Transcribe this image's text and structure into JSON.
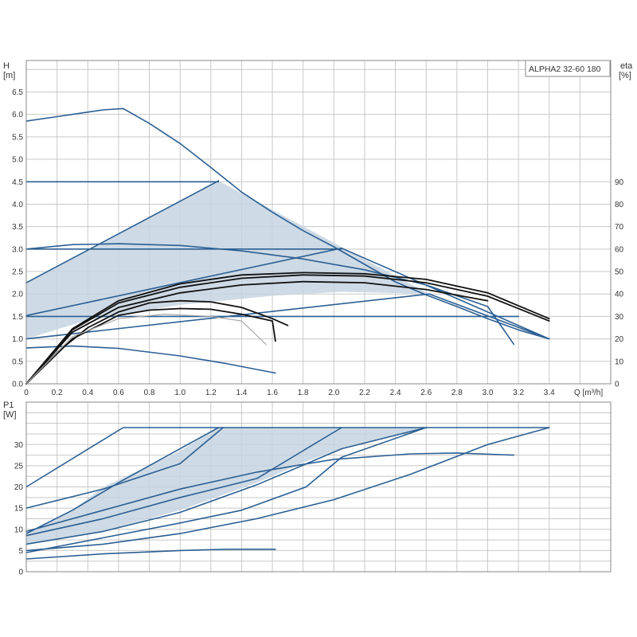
{
  "model_label": "ALPHA2 32-60 180",
  "colors": {
    "curve": "#2b5f93",
    "area": "#c5d3e0",
    "eta": "#111111",
    "eta_alt": "#aaaaaa",
    "grid": "#c8c8c8"
  },
  "chart_data": [
    {
      "type": "line",
      "name": "head",
      "ylabel_top": "H",
      "ylabel_unit": "[m]",
      "y2label_top": "eta",
      "y2label_unit": "[%]",
      "xlabel": "Q [m³/h]",
      "xlim": [
        0,
        3.8
      ],
      "ylim": [
        0,
        7.2
      ],
      "y2lim": [
        0,
        144
      ],
      "grid": true,
      "x_ticks": [
        "0",
        "0.2",
        "0.4",
        "0.6",
        "0.8",
        "1.0",
        "1.2",
        "1.4",
        "1.6",
        "1.8",
        "2.0",
        "2.2",
        "2.4",
        "2.6",
        "2.8",
        "3.0",
        "3.2",
        "3.4"
      ],
      "y_ticks": [
        "0.0",
        "0.5",
        "1.0",
        "1.5",
        "2.0",
        "2.5",
        "3.0",
        "3.5",
        "4.0",
        "4.5",
        "5.0",
        "5.5",
        "6.0",
        "6.5"
      ],
      "y2_ticks": [
        "0",
        "10",
        "20",
        "30",
        "40",
        "50",
        "60",
        "70",
        "80",
        "90"
      ],
      "shaded_region": [
        [
          0,
          1.0
        ],
        [
          0,
          2.25
        ],
        [
          1.25,
          4.52
        ],
        [
          2.62,
          2.0
        ],
        [
          2.05,
          2.05
        ],
        [
          1.6,
          1.96
        ],
        [
          1.0,
          1.76
        ],
        [
          0.4,
          1.42
        ],
        [
          0,
          1.0
        ]
      ],
      "series": [
        {
          "kind": "head",
          "points": [
            [
              0,
              5.85
            ],
            [
              0.2,
              5.95
            ],
            [
              0.4,
              6.05
            ],
            [
              0.5,
              6.1
            ],
            [
              0.63,
              6.13
            ],
            [
              0.8,
              5.8
            ],
            [
              1.0,
              5.35
            ],
            [
              1.2,
              4.82
            ],
            [
              1.4,
              4.27
            ],
            [
              1.6,
              3.82
            ],
            [
              1.8,
              3.41
            ],
            [
              2.0,
              3.05
            ],
            [
              2.2,
              2.66
            ],
            [
              2.4,
              2.27
            ],
            [
              2.6,
              1.98
            ],
            [
              2.8,
              1.72
            ],
            [
              3.0,
              1.45
            ],
            [
              3.2,
              1.2
            ],
            [
              3.4,
              1.0
            ]
          ]
        },
        {
          "kind": "head",
          "points": [
            [
              0,
              4.5
            ],
            [
              1.25,
              4.5
            ]
          ]
        },
        {
          "kind": "head",
          "points": [
            [
              0,
              3.0
            ],
            [
              2.05,
              3.0
            ]
          ]
        },
        {
          "kind": "head",
          "points": [
            [
              0,
              1.5
            ],
            [
              3.2,
              1.5
            ]
          ]
        },
        {
          "kind": "head",
          "points": [
            [
              0,
              1.0
            ],
            [
              2.62,
              2.0
            ],
            [
              3.4,
              1.0
            ]
          ]
        },
        {
          "kind": "head",
          "points": [
            [
              0,
              2.25
            ],
            [
              1.25,
              4.52
            ]
          ]
        },
        {
          "kind": "head",
          "points": [
            [
              0,
              1.52
            ],
            [
              2.05,
              3.02
            ],
            [
              3.4,
              1.0
            ]
          ]
        },
        {
          "kind": "head",
          "points": [
            [
              0,
              3.0
            ],
            [
              0.3,
              3.1
            ],
            [
              0.6,
              3.12
            ],
            [
              1.0,
              3.08
            ],
            [
              1.4,
              2.96
            ],
            [
              1.8,
              2.78
            ],
            [
              2.2,
              2.54
            ],
            [
              2.6,
              2.2
            ],
            [
              3.0,
              1.72
            ],
            [
              3.17,
              0.88
            ]
          ]
        },
        {
          "kind": "head",
          "points": [
            [
              0,
              0.8
            ],
            [
              0.3,
              0.84
            ],
            [
              0.6,
              0.79
            ],
            [
              1.0,
              0.62
            ],
            [
              1.3,
              0.45
            ],
            [
              1.62,
              0.24
            ]
          ]
        },
        {
          "kind": "eta",
          "points": [
            [
              0,
              0
            ],
            [
              0.2,
              14
            ],
            [
              0.4,
              25
            ],
            [
              0.6,
              32
            ],
            [
              0.8,
              36
            ],
            [
              1.0,
              37
            ],
            [
              1.2,
              36.5
            ],
            [
              1.4,
              34
            ],
            [
              1.6,
              29
            ],
            [
              1.7,
              26
            ]
          ]
        },
        {
          "kind": "eta",
          "points": [
            [
              0,
              0
            ],
            [
              0.3,
              20
            ],
            [
              0.6,
              30.5
            ],
            [
              0.8,
              32.8
            ],
            [
              1.0,
              33.5
            ],
            [
              1.2,
              33.2
            ],
            [
              1.4,
              31
            ],
            [
              1.6,
              28
            ],
            [
              1.62,
              19
            ]
          ]
        },
        {
          "kind": "eta",
          "points": [
            [
              0,
              0
            ],
            [
              0.3,
              23
            ],
            [
              0.6,
              34
            ],
            [
              1.0,
              40.5
            ],
            [
              1.4,
              44
            ],
            [
              1.8,
              45.5
            ],
            [
              2.2,
              45
            ],
            [
              2.6,
              42
            ],
            [
              3.0,
              37
            ]
          ]
        },
        {
          "kind": "eta",
          "points": [
            [
              0,
              0
            ],
            [
              0.3,
              24
            ],
            [
              0.6,
              36
            ],
            [
              1.0,
              43
            ],
            [
              1.4,
              47
            ],
            [
              1.8,
              48.5
            ],
            [
              2.2,
              48
            ],
            [
              2.6,
              45
            ],
            [
              3.0,
              39
            ],
            [
              3.4,
              28
            ]
          ]
        },
        {
          "kind": "eta",
          "points": [
            [
              0,
              0
            ],
            [
              0.3,
              24.5
            ],
            [
              0.6,
              37
            ],
            [
              1.0,
              44.5
            ],
            [
              1.4,
              48.5
            ],
            [
              1.8,
              49.5
            ],
            [
              2.2,
              49
            ],
            [
              2.6,
              46.5
            ],
            [
              3.0,
              40.5
            ],
            [
              3.4,
              29
            ]
          ]
        },
        {
          "kind": "eta_alt",
          "points": [
            [
              0,
              0
            ],
            [
              0.3,
              21
            ],
            [
              0.6,
              29
            ],
            [
              0.9,
              31
            ],
            [
              1.2,
              30
            ],
            [
              1.4,
              28
            ],
            [
              1.56,
              17.5
            ]
          ]
        }
      ]
    },
    {
      "type": "line",
      "name": "power",
      "ylabel_top": "P1",
      "ylabel_unit": "[W]",
      "xlim": [
        0,
        3.8
      ],
      "ylim": [
        0,
        40
      ],
      "grid": true,
      "y_ticks": [
        "0",
        "5",
        "10",
        "15",
        "20",
        "25",
        "30"
      ],
      "shaded_region": [
        [
          0,
          6.5
        ],
        [
          0.5,
          9.5
        ],
        [
          1.0,
          14.5
        ],
        [
          1.5,
          21
        ],
        [
          1.82,
          26
        ],
        [
          2.05,
          29
        ],
        [
          2.6,
          34
        ],
        [
          1.25,
          34
        ],
        [
          1.0,
          28.5
        ],
        [
          0.8,
          25
        ],
        [
          0.5,
          20
        ],
        [
          0.3,
          14.5
        ],
        [
          0,
          9
        ]
      ],
      "series": [
        {
          "kind": "power",
          "points": [
            [
              0,
              20
            ],
            [
              0.63,
              34
            ],
            [
              3.4,
              34
            ]
          ]
        },
        {
          "kind": "power",
          "points": [
            [
              0,
              15
            ],
            [
              0.5,
              19.5
            ],
            [
              1.0,
              25.5
            ],
            [
              1.28,
              34
            ]
          ]
        },
        {
          "kind": "power",
          "points": [
            [
              0,
              9
            ],
            [
              0.3,
              14.5
            ],
            [
              0.6,
              21
            ],
            [
              0.9,
              27
            ],
            [
              1.25,
              34
            ]
          ]
        },
        {
          "kind": "power",
          "points": [
            [
              0,
              6.5
            ],
            [
              0.5,
              9.5
            ],
            [
              1.0,
              14
            ],
            [
              1.5,
              20.5
            ],
            [
              2.05,
              29
            ],
            [
              2.6,
              34
            ]
          ]
        },
        {
          "kind": "power",
          "points": [
            [
              0,
              5
            ],
            [
              0.5,
              6.5
            ],
            [
              1.0,
              9
            ],
            [
              1.5,
              12.5
            ],
            [
              2.0,
              17
            ],
            [
              2.5,
              23
            ],
            [
              3.0,
              30
            ],
            [
              3.4,
              34
            ]
          ]
        },
        {
          "kind": "power",
          "points": [
            [
              0,
              8.5
            ],
            [
              0.5,
              12.5
            ],
            [
              1.0,
              17.5
            ],
            [
              1.5,
              22
            ],
            [
              2.05,
              34
            ]
          ]
        },
        {
          "kind": "power",
          "points": [
            [
              0,
              4.5
            ],
            [
              0.5,
              8
            ],
            [
              1.0,
              11.5
            ],
            [
              1.4,
              14.5
            ],
            [
              1.82,
              20
            ],
            [
              2.05,
              27
            ],
            [
              2.6,
              34
            ]
          ]
        },
        {
          "kind": "power",
          "points": [
            [
              0,
              9.5
            ],
            [
              0.5,
              14.5
            ],
            [
              1.0,
              19.5
            ],
            [
              1.5,
              23.5
            ],
            [
              2.0,
              26.5
            ],
            [
              2.5,
              27.8
            ],
            [
              2.8,
              28
            ],
            [
              3.17,
              27.5
            ]
          ]
        },
        {
          "kind": "power",
          "points": [
            [
              0,
              3
            ],
            [
              0.5,
              4.2
            ],
            [
              1.0,
              5
            ],
            [
              1.3,
              5.3
            ],
            [
              1.62,
              5.3
            ]
          ]
        }
      ]
    }
  ]
}
